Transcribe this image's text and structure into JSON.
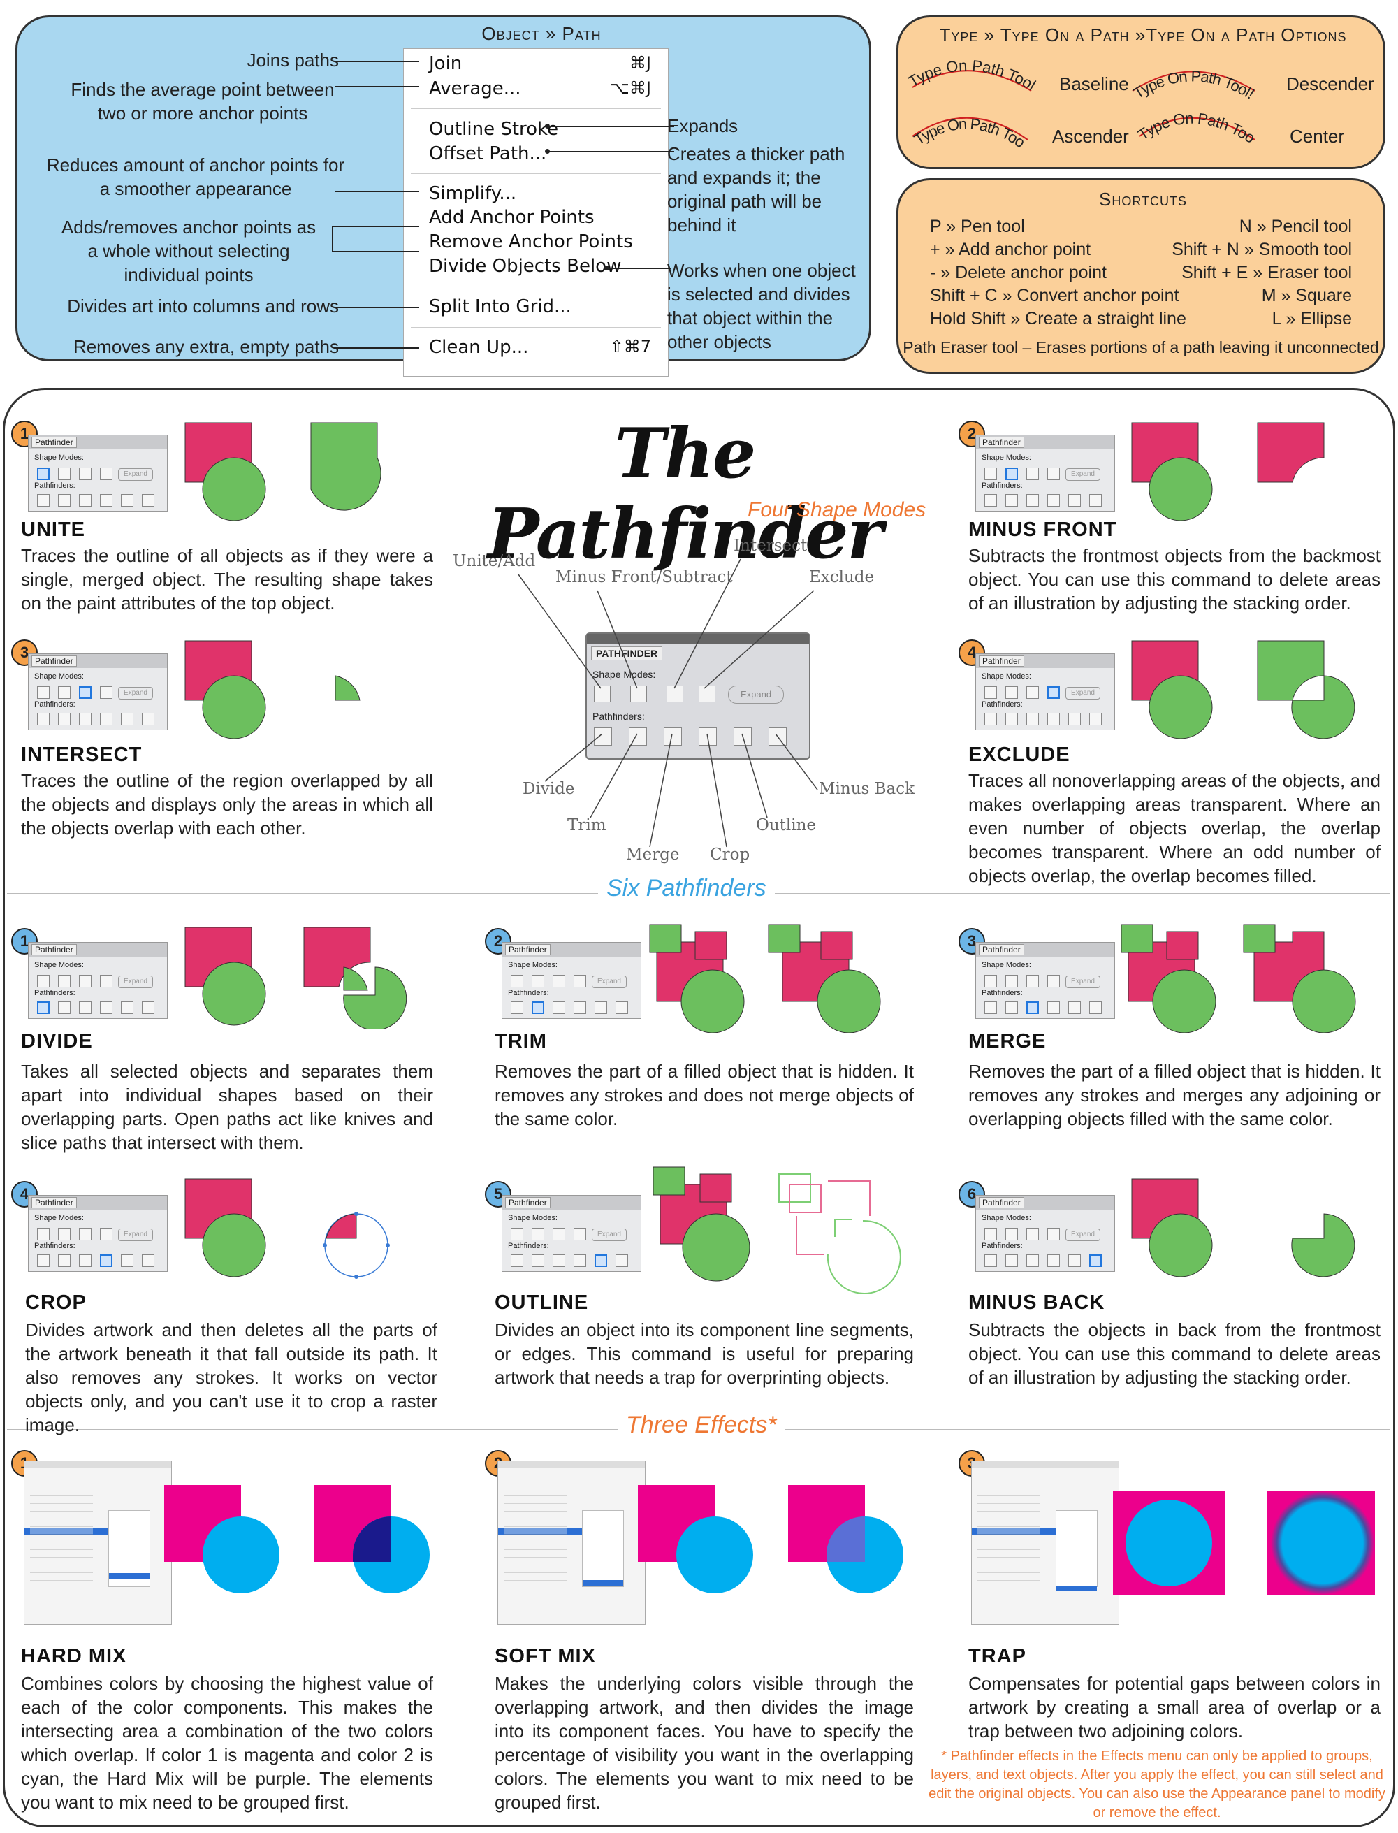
{
  "object_path": {
    "title": "Object » Path",
    "menu": [
      {
        "label": "Join",
        "shortcut": "⌘J"
      },
      {
        "label": "Average...",
        "shortcut": "⌥⌘J"
      },
      {
        "label": "Outline Stroke",
        "shortcut": ""
      },
      {
        "label": "Offset Path...",
        "shortcut": ""
      },
      {
        "label": "Simplify...",
        "shortcut": ""
      },
      {
        "label": "Add Anchor Points",
        "shortcut": ""
      },
      {
        "label": "Remove Anchor Points",
        "shortcut": ""
      },
      {
        "label": "Divide Objects Below",
        "shortcut": ""
      },
      {
        "label": "Split Into Grid...",
        "shortcut": ""
      },
      {
        "label": "Clean Up...",
        "shortcut": "⇧⌘7"
      }
    ],
    "notes_left": {
      "join": "Joins paths",
      "average": "Finds the average point between two or more anchor points",
      "simplify": "Reduces amount of anchor points for a smoother appearance",
      "anchor": "Adds/removes anchor points as a whole without selecting individual points",
      "grid": "Divides art into columns and rows",
      "cleanup": "Removes any extra, empty paths"
    },
    "notes_right": {
      "outline": "Expands",
      "offset": "Creates a thicker path and expands it; the original path will be behind it",
      "divide": "Works when one object is selected and divides that object within the other objects"
    }
  },
  "type_on_path": {
    "title": "Type » Type On a Path »Type On a Path Options",
    "sample": "Type On Path Tool!",
    "options": [
      "Baseline",
      "Descender",
      "Ascender",
      "Center"
    ]
  },
  "shortcuts": {
    "title": "Shortcuts",
    "rows": [
      [
        "P » Pen tool",
        "N » Pencil tool"
      ],
      [
        "+ » Add anchor point",
        "Shift + N » Smooth tool"
      ],
      [
        "- » Delete anchor point",
        "Shift + E » Eraser tool"
      ],
      [
        "Shift + C » Convert anchor point",
        "M » Square"
      ],
      [
        "Hold Shift » Create a straight line",
        "L » Ellipse"
      ]
    ],
    "footer": "Path Eraser tool – Erases portions of a path leaving it unconnected"
  },
  "pathfinder": {
    "title": "The Pathfinder",
    "subtitle": "Four Shape Modes",
    "panel_title": "PATHFINDER",
    "panel_shape_modes": "Shape Modes:",
    "panel_pathfinders": "Pathfinders:",
    "panel_expand": "Expand",
    "mini_title": "Pathfinder",
    "callouts": [
      "Unite/Add",
      "Minus Front/Subtract",
      "Intersect",
      "Exclude",
      "Divide",
      "Trim",
      "Merge",
      "Crop",
      "Outline",
      "Minus Back"
    ]
  },
  "shape_modes": [
    {
      "num": "1",
      "heading": "UNITE",
      "text": "Traces the outline of all objects as if they were a single, merged object. The resulting shape takes on the paint attributes of the top object."
    },
    {
      "num": "2",
      "heading": "MINUS FRONT",
      "text": "Subtracts the frontmost objects from the backmost object. You can use this command to delete areas of an illustration by adjusting the stacking order."
    },
    {
      "num": "3",
      "heading": "INTERSECT",
      "text": "Traces the outline of the region overlapped by all the objects and displays only the areas in which all the objects overlap with each other."
    },
    {
      "num": "4",
      "heading": "EXCLUDE",
      "text": "Traces all nonoverlapping areas of the objects, and makes overlapping areas transparent. Where an even number of objects overlap, the overlap becomes transparent. Where an odd number of objects overlap, the overlap becomes filled."
    }
  ],
  "six_title": "Six Pathfinders",
  "pathfinders": [
    {
      "num": "1",
      "heading": "DIVIDE",
      "text": "Takes all selected objects and separates them apart into individual shapes based on their overlapping parts. Open paths act like knives and slice paths that intersect with them."
    },
    {
      "num": "2",
      "heading": "TRIM",
      "text": "Removes the part of a filled object that is hidden. It removes any strokes and does not merge objects of the same color."
    },
    {
      "num": "3",
      "heading": "MERGE",
      "text": "Removes the part of a filled object that is hidden. It removes any strokes and merges any adjoining or overlapping objects filled with the same color."
    },
    {
      "num": "4",
      "heading": "CROP",
      "text": "Divides artwork and then deletes all the parts of the artwork beneath it that fall outside its path. It also removes any strokes. It works on vector objects only, and you can't use it to crop a raster image."
    },
    {
      "num": "5",
      "heading": "OUTLINE",
      "text": "Divides an object into its component line segments, or edges. This command is useful for preparing artwork that needs a trap for overprinting objects."
    },
    {
      "num": "6",
      "heading": "MINUS BACK",
      "text": "Subtracts the objects in back from the frontmost object. You can use this command to delete areas of an illustration by adjusting the stacking order."
    }
  ],
  "effects_title": "Three Effects*",
  "effects": [
    {
      "num": "1",
      "heading": "HARD MIX",
      "text": "Combines colors by choosing the highest value of each of the color components. This makes the intersecting area a combination of the two colors which overlap. If color 1 is magenta and color 2 is cyan, the Hard Mix will be purple. The elements you want to mix need to be grouped first."
    },
    {
      "num": "2",
      "heading": "SOFT MIX",
      "text": "Makes the underlying colors visible through the overlapping artwork, and then divides the image into its component faces. You have to specify the percentage of visibility you want in the overlapping colors. The elements you want to mix need to be grouped first."
    },
    {
      "num": "3",
      "heading": "TRAP",
      "text": "Compensates for potential gaps between colors in artwork by creating a small area of overlap or a trap between two adjoining colors."
    }
  ],
  "footnote": "* Pathfinder effects in the Effects menu can only be applied to groups, layers, and text objects. After you apply the effect, you can still select and edit the original objects. You can also use the Appearance panel to modify or remove the effect.",
  "colors": {
    "magenta": "#e0336a",
    "green": "#6cbf5e",
    "cyan": "#00aeef",
    "pink": "#ec008c",
    "orange": "#ee7733",
    "blue_box": "#a9d7f0",
    "orange_box": "#fbd09a"
  }
}
